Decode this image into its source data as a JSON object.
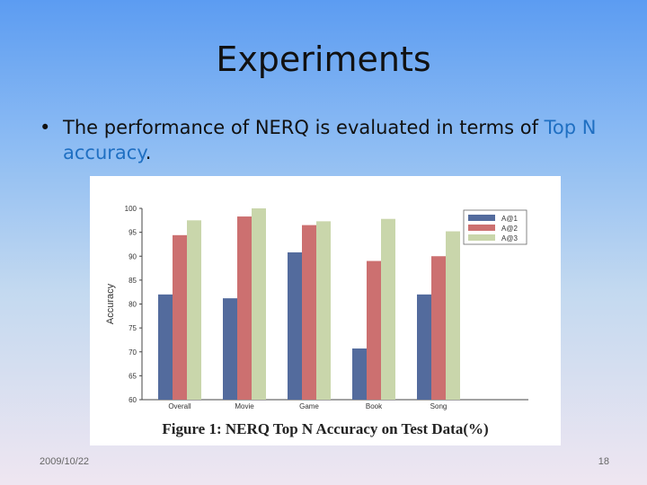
{
  "slide": {
    "title": "Experiments",
    "bullet_pre": "The performance of NERQ is evaluated in terms of ",
    "bullet_highlight": "Top N accuracy",
    "bullet_post": ".",
    "date": "2009/10/22",
    "page": "18"
  },
  "chart_data": {
    "type": "bar",
    "title": "",
    "caption": "Figure 1: NERQ Top N Accuracy on Test Data(%)",
    "xlabel": "",
    "ylabel": "Accuracy",
    "categories": [
      "Overall",
      "Movie",
      "Game",
      "Book",
      "Song"
    ],
    "ylim": [
      60,
      100
    ],
    "yticks": [
      60,
      65,
      70,
      75,
      80,
      85,
      90,
      95,
      100
    ],
    "legend_position": "top-right",
    "series": [
      {
        "name": "A@1",
        "color": "#536b9d",
        "values": [
          82,
          81.2,
          90.8,
          70.7,
          82
        ]
      },
      {
        "name": "A@2",
        "color": "#cc7070",
        "values": [
          94.4,
          98.3,
          96.5,
          89,
          90
        ]
      },
      {
        "name": "A@3",
        "color": "#c9d6ab",
        "values": [
          97.5,
          100,
          97.3,
          97.8,
          95.2
        ]
      }
    ]
  }
}
